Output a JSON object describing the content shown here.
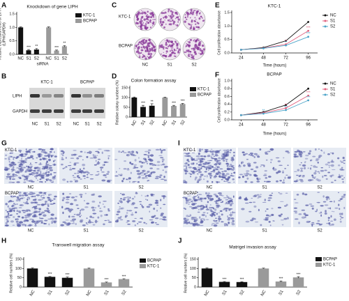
{
  "panel_labels": [
    "A",
    "B",
    "C",
    "D",
    "E",
    "F",
    "G",
    "H",
    "I",
    "J"
  ],
  "chart_data": [
    {
      "type": "bar",
      "title": "Knockdown of gene LIPH",
      "y_label": [
        "Relative expression level of LIPH",
        "(LIPH/GAPDH)"
      ],
      "x_label": "siRNA",
      "categories": [
        "NC",
        "S1",
        "S2",
        "NC",
        "S1",
        "S2"
      ],
      "series": [
        {
          "name": "KTC-1",
          "color": "#111111",
          "values": [
            1.0,
            0.15,
            0.18,
            null,
            null,
            null
          ],
          "errors": [
            0.02,
            0.03,
            0.04,
            null,
            null,
            null
          ],
          "significance": [
            null,
            "***",
            "**",
            null,
            null,
            null
          ]
        },
        {
          "name": "BCPAP",
          "color": "#9a9a9a",
          "values": [
            null,
            null,
            null,
            1.0,
            0.14,
            0.3
          ],
          "errors": [
            null,
            null,
            null,
            0.02,
            0.02,
            0.03
          ],
          "significance": [
            null,
            null,
            null,
            null,
            "***",
            "**"
          ]
        }
      ],
      "ylim": [
        0,
        1.5
      ],
      "yticks": [
        {
          "value": 0,
          "label": "0.0"
        },
        0.5,
        {
          "value": 1,
          "label": "1.0"
        },
        1.5
      ]
    },
    {
      "type": "bar",
      "title": "Colon formation assay",
      "y_label": "Relative colony numbers (%)",
      "categories": [
        "NC",
        "S1",
        "S2",
        "NC",
        "S1",
        "S2"
      ],
      "series": [
        {
          "name": "KTC-1",
          "color": "#111111",
          "values": [
            100,
            52,
            58,
            null,
            null,
            null
          ],
          "errors": [
            3,
            8,
            10,
            null,
            null,
            null
          ],
          "significance": [
            null,
            "***",
            "**",
            null,
            null,
            null
          ]
        },
        {
          "name": "BCPAP",
          "color": "#9a9a9a",
          "values": [
            null,
            null,
            null,
            100,
            57,
            67
          ],
          "errors": [
            null,
            null,
            null,
            2,
            3,
            3
          ],
          "significance": [
            null,
            null,
            null,
            null,
            "***",
            "***"
          ]
        }
      ],
      "ylim": [
        0,
        150
      ],
      "yticks": [
        0,
        50,
        100,
        150
      ]
    },
    {
      "type": "line",
      "title": "KTC-1",
      "y_label": "Cell proliferation absorbance",
      "x_label": "Time (hours)",
      "x": [
        24,
        48,
        72,
        96
      ],
      "xlim": [
        14,
        106
      ],
      "xticks": [
        24,
        48,
        72,
        96
      ],
      "series": [
        {
          "name": "NC",
          "color": "#111111",
          "values": [
            0.12,
            0.2,
            0.45,
            1.15
          ],
          "significance": [
            null,
            null,
            null,
            null
          ]
        },
        {
          "name": "S1",
          "color": "#e0607e",
          "values": [
            0.12,
            0.18,
            0.32,
            0.82
          ],
          "significance": [
            null,
            null,
            "**",
            "***"
          ]
        },
        {
          "name": "S2",
          "color": "#4aa3c8",
          "values": [
            0.12,
            0.17,
            0.28,
            0.6
          ],
          "significance": [
            null,
            null,
            "**",
            "***"
          ]
        }
      ],
      "ylim": [
        0,
        1.5
      ],
      "yticks": [
        {
          "value": 0,
          "label": "0.0"
        },
        0.5,
        {
          "value": 1,
          "label": "1.0"
        },
        1.5
      ]
    },
    {
      "type": "line",
      "title": "BCPAP",
      "y_label": "Cell proliferation absorbance",
      "x_label": "Time (hours)",
      "x": [
        24,
        48,
        72,
        96
      ],
      "xlim": [
        14,
        106
      ],
      "xticks": [
        24,
        48,
        72,
        96
      ],
      "series": [
        {
          "name": "NC",
          "color": "#111111",
          "values": [
            0.12,
            0.2,
            0.38,
            0.8
          ],
          "significance": [
            null,
            null,
            null,
            null
          ]
        },
        {
          "name": "S1",
          "color": "#e0607e",
          "values": [
            0.12,
            0.18,
            0.3,
            0.62
          ],
          "significance": [
            null,
            null,
            "**",
            "***"
          ]
        },
        {
          "name": "S2",
          "color": "#4aa3c8",
          "values": [
            0.12,
            0.16,
            0.25,
            0.5
          ],
          "significance": [
            null,
            "**",
            "***",
            "***"
          ]
        }
      ],
      "ylim": [
        0,
        1.0
      ],
      "yticks": [
        {
          "value": 0,
          "label": "0.0"
        },
        0.2,
        0.4,
        0.6,
        0.8,
        {
          "value": 1,
          "label": "1.0"
        }
      ]
    },
    {
      "type": "bar",
      "title": "Transwell migration assay",
      "y_label": "Relative cell numbers (%)",
      "categories": [
        "NC",
        "S1",
        "S2",
        "NC",
        "S1",
        "S2"
      ],
      "series": [
        {
          "name": "BCPAP",
          "color": "#111111",
          "values": [
            100,
            55,
            50,
            null,
            null,
            null
          ],
          "errors": [
            3,
            2,
            4,
            null,
            null,
            null
          ],
          "significance": [
            null,
            "***",
            "***",
            null,
            null,
            null
          ]
        },
        {
          "name": "KTC-1",
          "color": "#9a9a9a",
          "values": [
            null,
            null,
            null,
            100,
            25,
            43
          ],
          "errors": [
            null,
            null,
            null,
            2,
            2,
            2
          ],
          "significance": [
            null,
            null,
            null,
            null,
            "***",
            "***"
          ]
        }
      ],
      "ylim": [
        0,
        150
      ],
      "yticks": [
        0,
        50,
        100,
        150
      ]
    },
    {
      "type": "bar",
      "title": "Matrigel invasion assay",
      "y_label": "Relative cell numbers (%)",
      "categories": [
        "NC",
        "S1",
        "S2",
        "NC",
        "S1",
        "S2"
      ],
      "series": [
        {
          "name": "BCPAP",
          "color": "#111111",
          "values": [
            100,
            28,
            27,
            null,
            null,
            null
          ],
          "errors": [
            3,
            2,
            2,
            null,
            null,
            null
          ],
          "significance": [
            null,
            "***",
            "***",
            null,
            null,
            null
          ]
        },
        {
          "name": "KTC-1",
          "color": "#9a9a9a",
          "values": [
            null,
            null,
            null,
            100,
            30,
            52
          ],
          "errors": [
            null,
            null,
            null,
            2,
            3,
            4
          ],
          "significance": [
            null,
            null,
            null,
            null,
            "***",
            "***"
          ]
        }
      ],
      "ylim": [
        0,
        150
      ],
      "yticks": [
        0,
        50,
        100,
        150
      ]
    }
  ],
  "blot": {
    "cell_lines": [
      "KTC-1",
      "BCPAP"
    ],
    "proteins": [
      "LIPH",
      "GAPDH"
    ],
    "lanes": [
      "NC",
      "S1",
      "S2",
      "NC",
      "S1",
      "S2"
    ]
  },
  "colony": {
    "rows": [
      "KTC-1",
      "BCPAP"
    ],
    "columns": [
      "NC",
      "S1",
      "S2"
    ]
  },
  "migration_images": {
    "rows": [
      "KTC-1",
      "BCPAP"
    ],
    "columns": [
      "NC",
      "S1",
      "S2"
    ]
  },
  "invasion_images": {
    "rows": [
      "KTC-1",
      "BCPAP"
    ],
    "columns": [
      "NC",
      "S1",
      "S2"
    ]
  }
}
